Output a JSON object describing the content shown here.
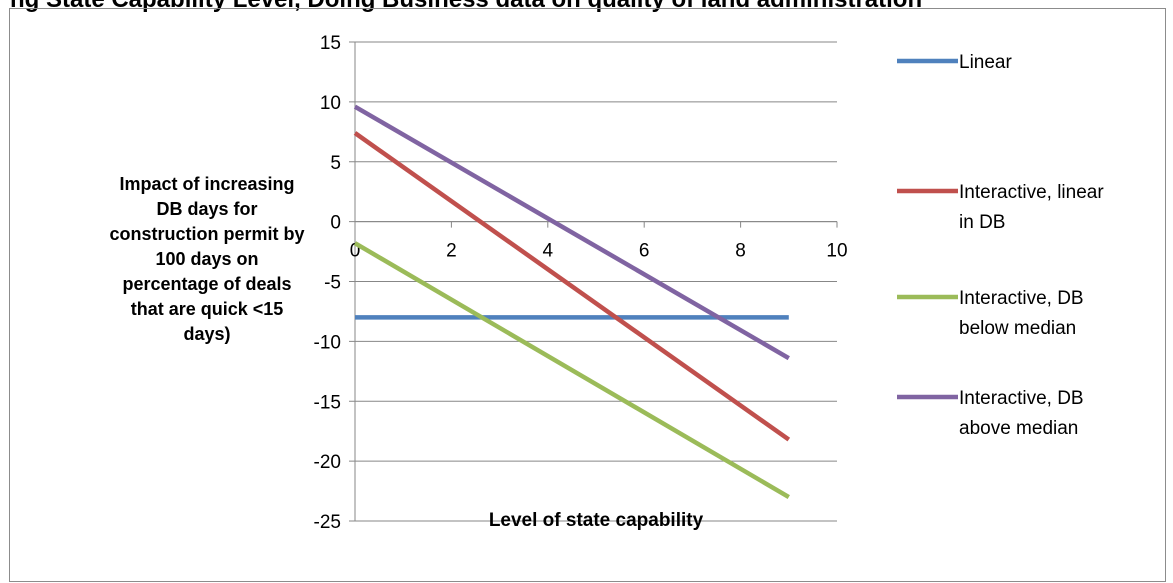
{
  "page": {
    "title_fragment": "ng State Capability Level, Doing Business data on quality of land administration"
  },
  "chart_data": {
    "type": "line",
    "title": "",
    "xlabel": "Level of state capability",
    "ylabel": "Impact of increasing DB days for construction permit by 100 days on percentage of deals that are quick <15 days)",
    "xlim": [
      0,
      10
    ],
    "ylim": [
      -25,
      15
    ],
    "xticks": [
      0,
      2,
      4,
      6,
      8,
      10
    ],
    "yticks": [
      15,
      10,
      5,
      0,
      -5,
      -10,
      -15,
      -20,
      -25
    ],
    "grid": "horizontal",
    "legend_position": "right",
    "series": [
      {
        "name": "Linear",
        "color": "#4f81bd",
        "x": [
          0,
          9
        ],
        "y": [
          -8,
          -8
        ]
      },
      {
        "name": "Interactive, linear in DB",
        "color": "#c0504d",
        "x": [
          0,
          9
        ],
        "y": [
          7.4,
          -18.2
        ]
      },
      {
        "name": "Interactive, DB below median",
        "color": "#9bbb59",
        "x": [
          0,
          9
        ],
        "y": [
          -1.8,
          -23
        ]
      },
      {
        "name": "Interactive, DB above median",
        "color": "#8064a2",
        "x": [
          0,
          9
        ],
        "y": [
          9.6,
          -11.4
        ]
      }
    ]
  }
}
